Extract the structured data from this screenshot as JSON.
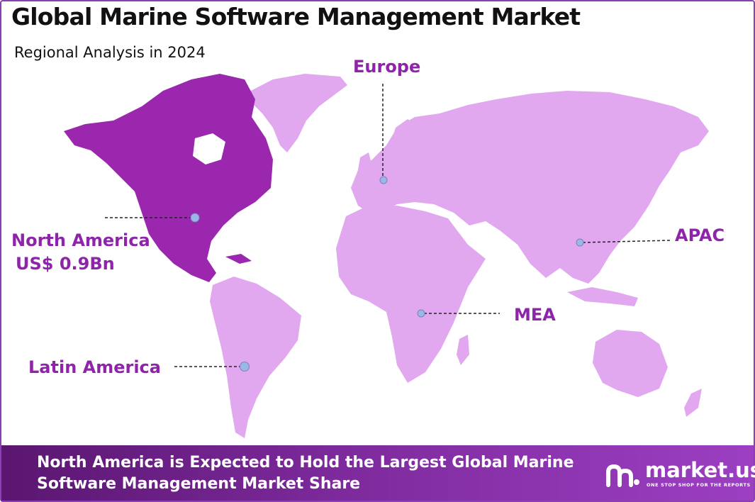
{
  "header": {
    "title": "Global Marine Software Management Market",
    "subtitle": "Regional Analysis in 2024"
  },
  "map": {
    "regions": [
      {
        "name": "North America",
        "value": "US$ 0.9Bn",
        "highlighted": true
      },
      {
        "name": "Europe",
        "highlighted": false
      },
      {
        "name": "APAC",
        "highlighted": false
      },
      {
        "name": "MEA",
        "highlighted": false
      },
      {
        "name": "Latin America",
        "highlighted": false
      }
    ],
    "colors": {
      "highlight": "#9b27af",
      "land": "#e1a8ef",
      "label": "#8e24aa",
      "marker": "#9ab8e6"
    }
  },
  "footer": {
    "line1": "North America is Expected to Hold the Largest Global Marine",
    "line2": "Software Management Market Share",
    "logo_name": "market.us",
    "logo_tagline": "ONE STOP SHOP FOR THE REPORTS"
  }
}
